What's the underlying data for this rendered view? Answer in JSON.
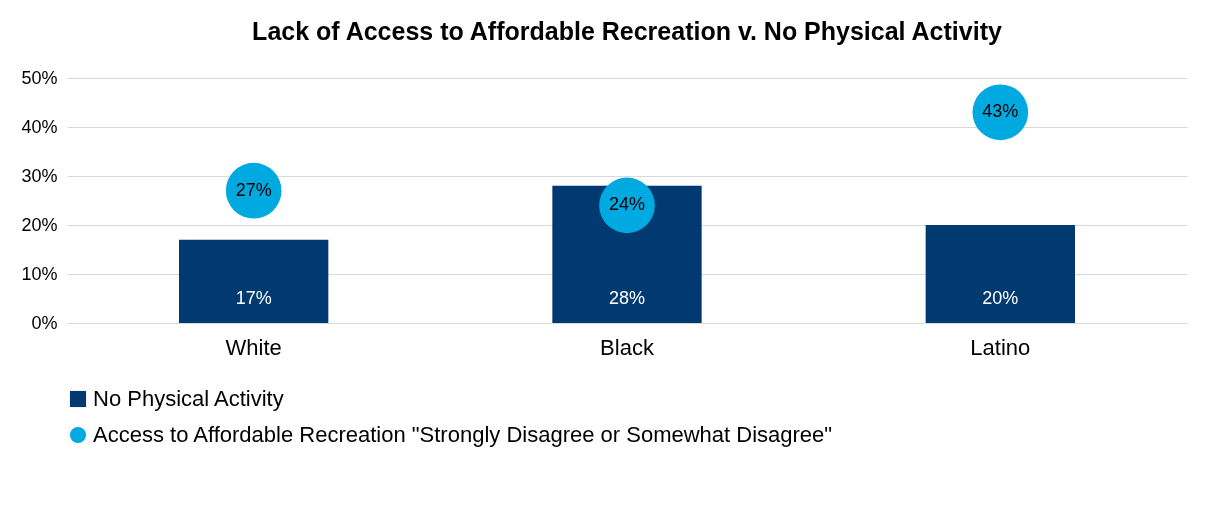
{
  "chart_data": {
    "type": "bar",
    "title": "Lack of Access to Affordable Recreation v. No Physical Activity",
    "categories": [
      "White",
      "Black",
      "Latino"
    ],
    "series": [
      {
        "name": "No Physical Activity",
        "color": "#003a70",
        "values": [
          17,
          28,
          20
        ],
        "value_labels": [
          "17%",
          "28%",
          "20%"
        ]
      },
      {
        "name": "Access to Affordable Recreation \"Strongly Disagree or Somewhat Disagree\"",
        "type": "scatter",
        "color": "#00a9e0",
        "values": [
          27,
          24,
          43
        ],
        "value_labels": [
          "27%",
          "24%",
          "43%"
        ]
      }
    ],
    "ylim": [
      0,
      50
    ],
    "yticks": [
      {
        "value": 0,
        "label": "0%"
      },
      {
        "value": 10,
        "label": "10%"
      },
      {
        "value": 20,
        "label": "20%"
      },
      {
        "value": 30,
        "label": "30%"
      },
      {
        "value": 40,
        "label": "40%"
      },
      {
        "value": 50,
        "label": "50%"
      }
    ],
    "grid": "y",
    "legend": "bottom",
    "marker": "circle"
  }
}
